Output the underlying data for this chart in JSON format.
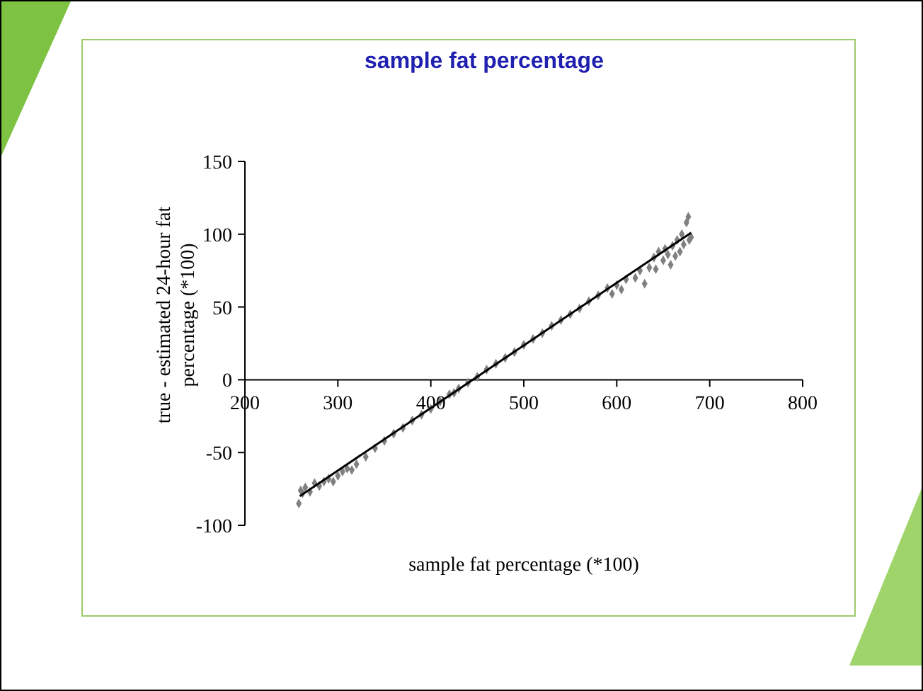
{
  "chart_data": {
    "type": "scatter",
    "title": "sample fat percentage",
    "xlabel": "sample fat percentage (*100)",
    "ylabel": "true - estimated 24-hour fat\npercentage (*100)",
    "xlim": [
      200,
      800
    ],
    "xticks": [
      200,
      300,
      400,
      500,
      600,
      700,
      800
    ],
    "ylim": [
      -100,
      150
    ],
    "yticks": [
      -100,
      -50,
      0,
      50,
      100,
      150
    ],
    "grid": false,
    "marker": "diamond",
    "series": [
      {
        "color": "#808080",
        "x": [
          258,
          260,
          262,
          265,
          270,
          275,
          280,
          285,
          290,
          295,
          300,
          305,
          310,
          315,
          320,
          330,
          340,
          350,
          360,
          370,
          380,
          390,
          400,
          410,
          420,
          425,
          430,
          440,
          450,
          460,
          470,
          480,
          490,
          500,
          510,
          520,
          530,
          540,
          550,
          560,
          570,
          580,
          590,
          595,
          600,
          605,
          610,
          620,
          625,
          630,
          635,
          640,
          642,
          645,
          650,
          652,
          655,
          658,
          660,
          663,
          665,
          668,
          670,
          672,
          675,
          677,
          678,
          680
        ],
        "values": [
          -85,
          -76,
          -78,
          -74,
          -77,
          -71,
          -73,
          -70,
          -68,
          -70,
          -66,
          -63,
          -61,
          -62,
          -58,
          -53,
          -47,
          -42,
          -37,
          -33,
          -28,
          -24,
          -20,
          -15,
          -10,
          -9,
          -6,
          -2,
          2,
          7,
          11,
          15,
          19,
          24,
          28,
          32,
          37,
          41,
          45,
          49,
          54,
          58,
          63,
          59,
          65,
          62,
          69,
          70,
          75,
          66,
          77,
          84,
          76,
          88,
          82,
          90,
          86,
          79,
          92,
          85,
          96,
          88,
          100,
          93,
          108,
          112,
          96,
          98
        ]
      },
      {
        "type": "line",
        "color": "#000000",
        "x": [
          259,
          680
        ],
        "values": [
          -80,
          101
        ],
        "marker": "none",
        "line_style": "solid"
      }
    ]
  }
}
